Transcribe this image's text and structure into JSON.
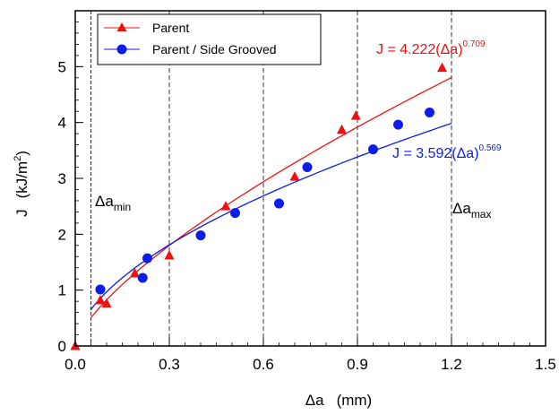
{
  "chart_data": {
    "type": "scatter",
    "xlabel_symbol": "Δa",
    "xlabel_unit": "(mm)",
    "ylabel_var": "J",
    "ylabel_unit": "(kJ/m",
    "ylabel_exp": "2",
    "ylabel_close": ")",
    "xlim": [
      0,
      1.5
    ],
    "ylim": [
      0,
      6
    ],
    "xticks": [
      0.0,
      0.3,
      0.6,
      0.9,
      1.2,
      1.5
    ],
    "xtick_labels": [
      "0.0",
      "0.3",
      "0.6",
      "0.9",
      "1.2",
      "1.5"
    ],
    "yticks": [
      0,
      1,
      2,
      3,
      4,
      5
    ],
    "ytick_labels": [
      "0",
      "1",
      "2",
      "3",
      "4",
      "5"
    ],
    "vlines_dashed": [
      0.3,
      0.6,
      0.9,
      1.2
    ],
    "vline_min": 0.05,
    "legend_position": "top-left",
    "series": [
      {
        "name": "Parent",
        "marker": "triangle",
        "color": "#ee1111",
        "x": [
          0.0,
          0.08,
          0.1,
          0.19,
          0.3,
          0.48,
          0.7,
          0.85,
          0.895,
          1.17
        ],
        "y": [
          0.0,
          0.82,
          0.76,
          1.3,
          1.62,
          2.5,
          3.03,
          3.87,
          4.12,
          4.98
        ],
        "fit": {
          "a": 4.222,
          "b": 0.709,
          "x_range": [
            0.05,
            1.2
          ]
        }
      },
      {
        "name": "Parent / Side Grooved",
        "marker": "circle",
        "color": "#0b1de8",
        "x": [
          0.08,
          0.215,
          0.23,
          0.4,
          0.51,
          0.65,
          0.74,
          0.95,
          1.03,
          1.13
        ],
        "y": [
          1.01,
          1.22,
          1.57,
          1.98,
          2.38,
          2.55,
          3.2,
          3.52,
          3.96,
          4.18
        ],
        "fit": {
          "a": 3.592,
          "b": 0.569,
          "x_range": [
            0.05,
            1.2
          ]
        }
      }
    ],
    "annotations": {
      "eq_red_main": "J = 4.222(",
      "eq_red_delta": "Δa)",
      "eq_red_exp": "0.709",
      "eq_blue_main": "J = 3.592(",
      "eq_blue_delta": "Δa)",
      "eq_blue_exp": "0.569",
      "damin_base": "Δa",
      "damin_sub": "min",
      "damax_base": "Δa",
      "damax_sub": "max"
    }
  },
  "colors": {
    "red": "#ee1111",
    "blue": "#0b1de8",
    "minline": "#8b1a1a"
  }
}
